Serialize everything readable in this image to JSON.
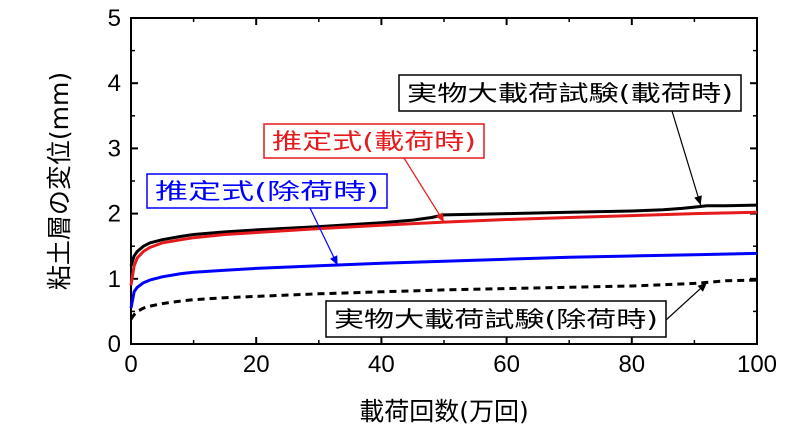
{
  "chart_data": {
    "type": "line",
    "xlabel": "載荷回数(万回)",
    "ylabel": "粘土層の変位(mm)",
    "xlim": [
      0,
      100
    ],
    "ylim": [
      0,
      5
    ],
    "xticks": [
      0,
      20,
      40,
      60,
      80,
      100
    ],
    "yticks": [
      0,
      1,
      2,
      3,
      4,
      5
    ],
    "grid": false,
    "series": [
      {
        "name": "実物大載荷試験(載荷時)",
        "color": "#000000",
        "dash": "solid",
        "x": [
          0,
          0.5,
          1,
          2,
          3,
          5,
          8,
          10,
          15,
          20,
          30,
          40,
          45,
          48,
          50,
          55,
          60,
          70,
          80,
          85,
          88,
          90,
          92,
          95,
          100
        ],
        "y": [
          1.2,
          1.35,
          1.42,
          1.5,
          1.55,
          1.6,
          1.65,
          1.68,
          1.72,
          1.75,
          1.8,
          1.86,
          1.9,
          1.94,
          1.98,
          1.99,
          2.0,
          2.02,
          2.04,
          2.06,
          2.08,
          2.1,
          2.12,
          2.12,
          2.13
        ]
      },
      {
        "name": "推定式(載荷時)",
        "color": "#e41a1c",
        "dash": "solid",
        "x": [
          0,
          0.5,
          1,
          2,
          3,
          5,
          8,
          10,
          15,
          20,
          30,
          40,
          50,
          60,
          70,
          80,
          90,
          100
        ],
        "y": [
          0.9,
          1.2,
          1.32,
          1.42,
          1.48,
          1.55,
          1.6,
          1.63,
          1.68,
          1.71,
          1.77,
          1.82,
          1.87,
          1.91,
          1.94,
          1.97,
          2.0,
          2.02
        ]
      },
      {
        "name": "推定式(除荷時)",
        "color": "#0000ff",
        "dash": "solid",
        "x": [
          0,
          0.5,
          1,
          2,
          3,
          5,
          8,
          10,
          15,
          20,
          30,
          40,
          50,
          60,
          70,
          80,
          90,
          100
        ],
        "y": [
          0.55,
          0.8,
          0.87,
          0.94,
          0.98,
          1.03,
          1.08,
          1.1,
          1.13,
          1.16,
          1.2,
          1.24,
          1.27,
          1.3,
          1.33,
          1.35,
          1.37,
          1.39
        ]
      },
      {
        "name": "実物大載荷試験(除荷時)",
        "color": "#000000",
        "dash": "dashed",
        "x": [
          0,
          0.5,
          1,
          2,
          3,
          5,
          8,
          10,
          15,
          20,
          30,
          40,
          50,
          60,
          70,
          80,
          90,
          95,
          100
        ],
        "y": [
          0.38,
          0.45,
          0.5,
          0.55,
          0.58,
          0.62,
          0.66,
          0.68,
          0.71,
          0.73,
          0.77,
          0.8,
          0.83,
          0.85,
          0.87,
          0.89,
          0.93,
          0.97,
          0.98
        ]
      }
    ],
    "annotations": [
      {
        "text": "実物大載荷試験(載荷時)",
        "color": "#000000",
        "series": 0,
        "target": [
          91,
          2.13
        ]
      },
      {
        "text": "推定式(載荷時)",
        "color": "#e41a1c",
        "series": 1,
        "target": [
          50,
          1.87
        ]
      },
      {
        "text": "推定式(除荷時)",
        "color": "#0000ff",
        "series": 2,
        "target": [
          33,
          1.21
        ]
      },
      {
        "text": "実物大載荷試験(除荷時)",
        "color": "#000000",
        "series": 3,
        "target": [
          92,
          0.94
        ]
      }
    ]
  }
}
